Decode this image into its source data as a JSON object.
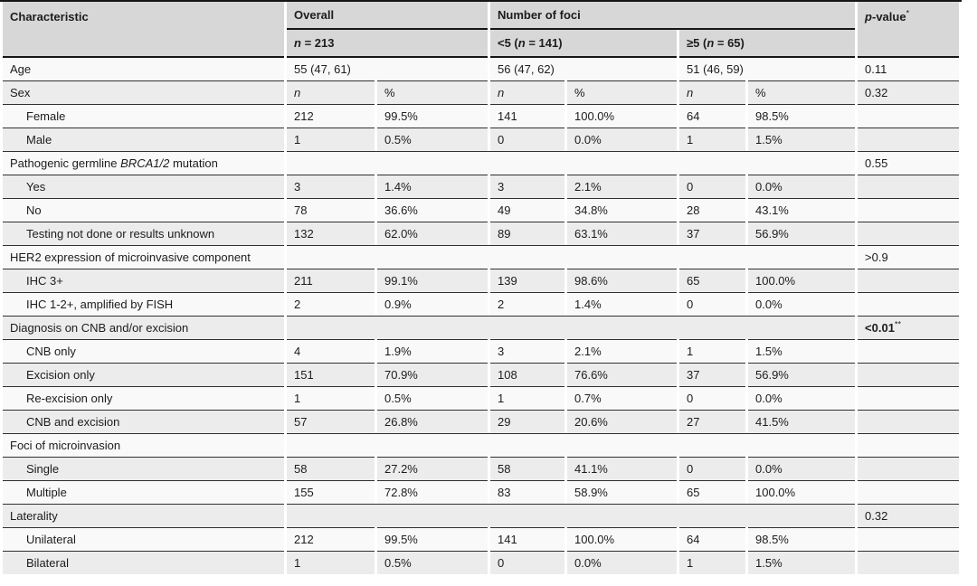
{
  "colors": {
    "header_bg": "#d7d7d7",
    "row_gray": "#ececec",
    "row_white": "#f9f9f9",
    "heavy_line": "#161616",
    "row_line": "#303030",
    "text": "#1c1c1c"
  },
  "header": {
    "characteristic": "Characteristic",
    "overall": "Overall",
    "overall_n": [
      {
        "t": "n",
        "i": true
      },
      {
        "t": " = 213"
      }
    ],
    "foci": "Number of foci",
    "foci_lt5": [
      {
        "t": "<5 ("
      },
      {
        "t": "n",
        "i": true
      },
      {
        "t": " = 141)"
      }
    ],
    "foci_ge5": [
      {
        "t": "≥5 ("
      },
      {
        "t": "n",
        "i": true
      },
      {
        "t": " = 65)"
      }
    ],
    "pvalue": [
      {
        "t": "p",
        "i": true
      },
      {
        "t": "-value"
      }
    ],
    "pvalue_sup": "*"
  },
  "subhead": {
    "n": "n",
    "pct": "%"
  },
  "rows": [
    {
      "type": "span",
      "indent": false,
      "label": [
        {
          "t": "Age"
        }
      ],
      "overall": "55 (47, 61)",
      "lt5": "56 (47, 62)",
      "ge5": "51 (46, 59)",
      "p": "0.11"
    },
    {
      "type": "nphead",
      "indent": false,
      "label": [
        {
          "t": "Sex"
        }
      ],
      "p": "0.32"
    },
    {
      "type": "data",
      "indent": true,
      "label": [
        {
          "t": "Female"
        }
      ],
      "cells": [
        "212",
        "99.5%",
        "141",
        "100.0%",
        "64",
        "98.5%"
      ],
      "p": ""
    },
    {
      "type": "data",
      "indent": true,
      "label": [
        {
          "t": "Male"
        }
      ],
      "cells": [
        "1",
        "0.5%",
        "0",
        "0.0%",
        "1",
        "1.5%"
      ],
      "p": ""
    },
    {
      "type": "label",
      "indent": false,
      "label": [
        {
          "t": "Pathogenic germline "
        },
        {
          "t": "BRCA1/2",
          "i": true
        },
        {
          "t": " mutation"
        }
      ],
      "p": "0.55"
    },
    {
      "type": "data",
      "indent": true,
      "label": [
        {
          "t": "Yes"
        }
      ],
      "cells": [
        "3",
        "1.4%",
        "3",
        "2.1%",
        "0",
        "0.0%"
      ],
      "p": ""
    },
    {
      "type": "data",
      "indent": true,
      "label": [
        {
          "t": "No"
        }
      ],
      "cells": [
        "78",
        "36.6%",
        "49",
        "34.8%",
        "28",
        "43.1%"
      ],
      "p": ""
    },
    {
      "type": "data",
      "indent": true,
      "label": [
        {
          "t": "Testing not done or results unknown"
        }
      ],
      "cells": [
        "132",
        "62.0%",
        "89",
        "63.1%",
        "37",
        "56.9%"
      ],
      "p": ""
    },
    {
      "type": "label",
      "indent": false,
      "label": [
        {
          "t": "HER2 expression of microinvasive component"
        }
      ],
      "p": ">0.9"
    },
    {
      "type": "data",
      "indent": true,
      "label": [
        {
          "t": "IHC 3+"
        }
      ],
      "cells": [
        "211",
        "99.1%",
        "139",
        "98.6%",
        "65",
        "100.0%"
      ],
      "p": ""
    },
    {
      "type": "data",
      "indent": true,
      "label": [
        {
          "t": "IHC 1-2+, amplified by FISH"
        }
      ],
      "cells": [
        "2",
        "0.9%",
        "2",
        "1.4%",
        "0",
        "0.0%"
      ],
      "p": ""
    },
    {
      "type": "label",
      "indent": false,
      "label": [
        {
          "t": "Diagnosis on CNB and/or excision"
        }
      ],
      "p": "<0.01",
      "p_sup": "**",
      "p_bold": true
    },
    {
      "type": "data",
      "indent": true,
      "label": [
        {
          "t": "CNB only"
        }
      ],
      "cells": [
        "4",
        "1.9%",
        "3",
        "2.1%",
        "1",
        "1.5%"
      ],
      "p": ""
    },
    {
      "type": "data",
      "indent": true,
      "label": [
        {
          "t": "Excision only"
        }
      ],
      "cells": [
        "151",
        "70.9%",
        "108",
        "76.6%",
        "37",
        "56.9%"
      ],
      "p": ""
    },
    {
      "type": "data",
      "indent": true,
      "label": [
        {
          "t": "Re-excision only"
        }
      ],
      "cells": [
        "1",
        "0.5%",
        "1",
        "0.7%",
        "0",
        "0.0%"
      ],
      "p": ""
    },
    {
      "type": "data",
      "indent": true,
      "label": [
        {
          "t": "CNB and excision"
        }
      ],
      "cells": [
        "57",
        "26.8%",
        "29",
        "20.6%",
        "27",
        "41.5%"
      ],
      "p": ""
    },
    {
      "type": "label",
      "indent": false,
      "label": [
        {
          "t": "Foci of microinvasion"
        }
      ],
      "p": ""
    },
    {
      "type": "data",
      "indent": true,
      "label": [
        {
          "t": "Single"
        }
      ],
      "cells": [
        "58",
        "27.2%",
        "58",
        "41.1%",
        "0",
        "0.0%"
      ],
      "p": ""
    },
    {
      "type": "data",
      "indent": true,
      "label": [
        {
          "t": "Multiple"
        }
      ],
      "cells": [
        "155",
        "72.8%",
        "83",
        "58.9%",
        "65",
        "100.0%"
      ],
      "p": ""
    },
    {
      "type": "label",
      "indent": false,
      "label": [
        {
          "t": "Laterality"
        }
      ],
      "p": "0.32"
    },
    {
      "type": "data",
      "indent": true,
      "label": [
        {
          "t": "Unilateral"
        }
      ],
      "cells": [
        "212",
        "99.5%",
        "141",
        "100.0%",
        "64",
        "98.5%"
      ],
      "p": ""
    },
    {
      "type": "data",
      "indent": true,
      "label": [
        {
          "t": "Bilateral"
        }
      ],
      "cells": [
        "1",
        "0.5%",
        "0",
        "0.0%",
        "1",
        "1.5%"
      ],
      "p": ""
    }
  ]
}
